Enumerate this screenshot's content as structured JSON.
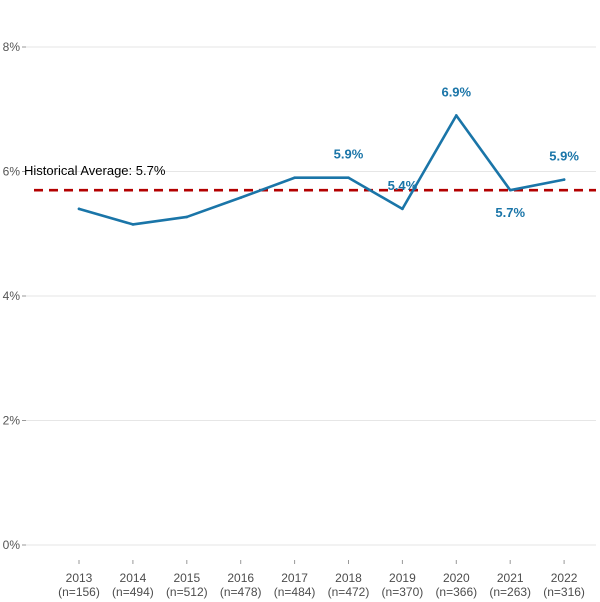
{
  "chart_data": {
    "type": "line",
    "title": "",
    "xlabel": "",
    "ylabel": "",
    "categories": [
      {
        "year": "2013",
        "n": "(n=156)"
      },
      {
        "year": "2014",
        "n": "(n=494)"
      },
      {
        "year": "2015",
        "n": "(n=512)"
      },
      {
        "year": "2016",
        "n": "(n=478)"
      },
      {
        "year": "2017",
        "n": "(n=484)"
      },
      {
        "year": "2018",
        "n": "(n=472)"
      },
      {
        "year": "2019",
        "n": "(n=370)"
      },
      {
        "year": "2020",
        "n": "(n=366)"
      },
      {
        "year": "2021",
        "n": "(n=263)"
      },
      {
        "year": "2022",
        "n": "(n=316)"
      }
    ],
    "series": [
      {
        "values": [
          5.4,
          5.15,
          5.27,
          5.58,
          5.9,
          5.9,
          5.4,
          6.9,
          5.7,
          5.87
        ],
        "color": "#1a75a8"
      }
    ],
    "data_labels": [
      {
        "index": 5,
        "text": "5.9%",
        "position": "above"
      },
      {
        "index": 6,
        "text": "5.4%",
        "position": "above"
      },
      {
        "index": 7,
        "text": "6.9%",
        "position": "above"
      },
      {
        "index": 8,
        "text": "5.7%",
        "position": "below"
      },
      {
        "index": 9,
        "text": "5.9%",
        "position": "above"
      }
    ],
    "reference_line": {
      "value": 5.7,
      "label": "Historical Average: 5.7%",
      "color": "#b30000",
      "style": "dashed"
    },
    "y_ticks": [
      {
        "value": 0,
        "label": "0%"
      },
      {
        "value": 2,
        "label": "2%"
      },
      {
        "value": 4,
        "label": "4%"
      },
      {
        "value": 6,
        "label": "6%"
      },
      {
        "value": 8,
        "label": "8%"
      }
    ],
    "ylim": [
      0,
      8
    ],
    "grid": "horizontal-major",
    "legend": "none"
  }
}
